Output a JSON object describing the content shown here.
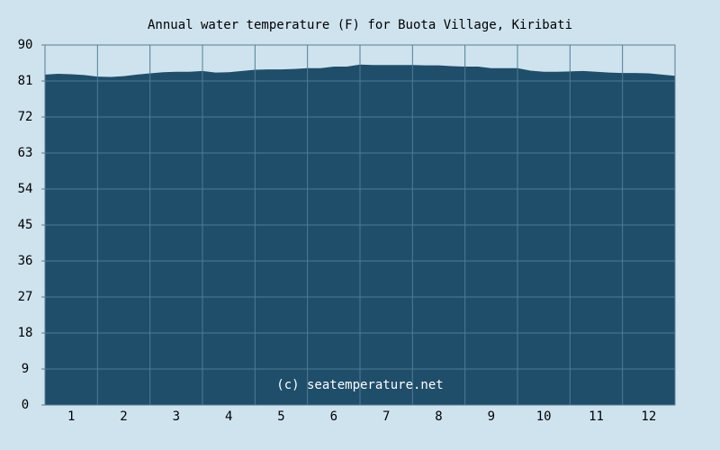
{
  "chart_data": {
    "type": "area",
    "title": "Annual water temperature (F) for Buota Village, Kiribati",
    "annotation": "(c) seatemperature.net",
    "x": [
      0.5,
      0.75,
      1,
      1.25,
      1.5,
      1.75,
      2,
      2.25,
      2.5,
      2.75,
      3,
      3.25,
      3.5,
      3.75,
      4,
      4.25,
      4.5,
      4.75,
      5,
      5.25,
      5.5,
      5.75,
      6,
      6.25,
      6.5,
      6.75,
      7,
      7.25,
      7.5,
      7.75,
      8,
      8.25,
      8.5,
      8.75,
      9,
      9.25,
      9.5,
      9.75,
      10,
      10.25,
      10.5,
      10.75,
      11,
      11.25,
      11.5,
      11.75,
      12,
      12.25,
      12.5
    ],
    "values": [
      82.6,
      82.8,
      82.7,
      82.5,
      82.1,
      82.0,
      82.2,
      82.6,
      82.9,
      83.2,
      83.3,
      83.3,
      83.5,
      83.1,
      83.2,
      83.5,
      83.8,
      83.9,
      83.9,
      84.0,
      84.2,
      84.2,
      84.6,
      84.6,
      85.1,
      85.0,
      85.0,
      85.0,
      85.0,
      84.9,
      84.9,
      84.7,
      84.6,
      84.6,
      84.2,
      84.2,
      84.2,
      83.6,
      83.3,
      83.3,
      83.4,
      83.5,
      83.3,
      83.1,
      83.0,
      83.0,
      82.9,
      82.6,
      82.3
    ],
    "color": "#1f4e6b",
    "xlim": [
      0.5,
      12.5
    ],
    "xticks": [
      1,
      2,
      3,
      4,
      5,
      6,
      7,
      8,
      9,
      10,
      11,
      12
    ],
    "ylim": [
      0,
      90
    ],
    "yticks": [
      0,
      9,
      18,
      27,
      36,
      45,
      54,
      63,
      72,
      81,
      90
    ],
    "grid": true
  }
}
